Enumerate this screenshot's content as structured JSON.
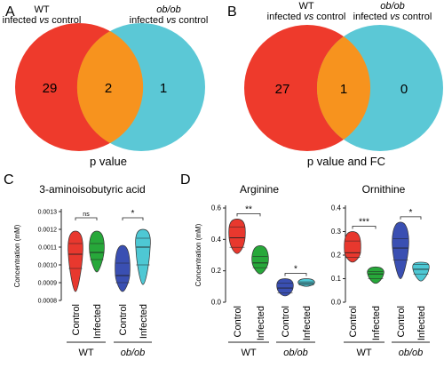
{
  "panels": {
    "A": {
      "letter": "A",
      "left_label": {
        "line1": "WT",
        "line2": "infected vs control",
        "line2_parts": [
          "infected ",
          "vs",
          " control"
        ]
      },
      "right_label": {
        "line1": "ob/ob",
        "line2": "infected vs control",
        "line2_parts": [
          "infected ",
          "vs",
          " control"
        ]
      },
      "counts": {
        "left_only": "29",
        "overlap": "2",
        "right_only": "1"
      },
      "caption": "p value"
    },
    "B": {
      "letter": "B",
      "left_label": {
        "line1": "WT",
        "line2": "infected vs control",
        "line2_parts": [
          "infected ",
          "vs",
          " control"
        ]
      },
      "right_label": {
        "line1": "ob/ob",
        "line2": "infected vs control",
        "line2_parts": [
          "infected ",
          "vs",
          " control"
        ]
      },
      "counts": {
        "left_only": "27",
        "overlap": "1",
        "right_only": "0"
      },
      "caption": "p value and FC"
    },
    "C": {
      "letter": "C"
    },
    "D": {
      "letter": "D"
    }
  },
  "colors": {
    "wt": "#ee3a2c",
    "ob": "#5bc8d6",
    "overlap": "#f7931e",
    "wt_control": "#e8382e",
    "wt_infected": "#27a83a",
    "ob_control": "#3a4fb2",
    "ob_infected": "#4ec8d4"
  },
  "chart_data": [
    {
      "type": "violin",
      "panel": "C",
      "title": "3-aminoisobutyric acid",
      "ylabel": "Concentration (mM)",
      "ylim": [
        0.0008,
        0.0013
      ],
      "yticks": [
        "0.0008",
        "0.0009",
        "0.0010",
        "0.0011",
        "0.0012",
        "0.0013"
      ],
      "categories": [
        "Control",
        "Infected",
        "Control",
        "Infected"
      ],
      "groups": [
        {
          "name": "WT",
          "italic": false
        },
        {
          "name": "ob/ob",
          "italic": true
        }
      ],
      "series": [
        {
          "name": "Control",
          "group": "WT",
          "min": 0.00085,
          "q1": 0.00098,
          "median": 0.00106,
          "q3": 0.00112,
          "max": 0.00119
        },
        {
          "name": "Infected",
          "group": "WT",
          "min": 0.00096,
          "q1": 0.00103,
          "median": 0.00107,
          "q3": 0.00112,
          "max": 0.00119
        },
        {
          "name": "Control",
          "group": "ob/ob",
          "min": 0.00085,
          "q1": 0.0009,
          "median": 0.00094,
          "q3": 0.00101,
          "max": 0.00111
        },
        {
          "name": "Infected",
          "group": "ob/ob",
          "min": 0.00089,
          "q1": 0.001,
          "median": 0.0011,
          "q3": 0.00115,
          "max": 0.0012
        }
      ],
      "significance": [
        {
          "pair": [
            0,
            1
          ],
          "label": "ns"
        },
        {
          "pair": [
            2,
            3
          ],
          "label": "*"
        }
      ]
    },
    {
      "type": "violin",
      "panel": "D",
      "title": "Arginine",
      "ylabel": "Concentration (mM)",
      "ylim": [
        0.0,
        0.6
      ],
      "yticks": [
        "0.0",
        "0.2",
        "0.4",
        "0.6"
      ],
      "categories": [
        "Control",
        "Infected",
        "Control",
        "Infected"
      ],
      "groups": [
        {
          "name": "WT",
          "italic": false
        },
        {
          "name": "ob/ob",
          "italic": true
        }
      ],
      "series": [
        {
          "name": "Control",
          "group": "WT",
          "min": 0.31,
          "q1": 0.35,
          "median": 0.41,
          "q3": 0.48,
          "max": 0.53
        },
        {
          "name": "Infected",
          "group": "WT",
          "min": 0.18,
          "q1": 0.22,
          "median": 0.25,
          "q3": 0.29,
          "max": 0.36
        },
        {
          "name": "Control",
          "group": "ob/ob",
          "min": 0.04,
          "q1": 0.06,
          "median": 0.09,
          "q3": 0.12,
          "max": 0.15
        },
        {
          "name": "Infected",
          "group": "ob/ob",
          "min": 0.1,
          "q1": 0.11,
          "median": 0.12,
          "q3": 0.13,
          "max": 0.15
        }
      ],
      "significance": [
        {
          "pair": [
            0,
            1
          ],
          "label": "**"
        },
        {
          "pair": [
            2,
            3
          ],
          "label": "*"
        }
      ]
    },
    {
      "type": "violin",
      "panel": "D",
      "title": "Ornithine",
      "ylabel": "",
      "ylim": [
        0.0,
        0.4
      ],
      "yticks": [
        "0.0",
        "0.1",
        "0.2",
        "0.3",
        "0.4"
      ],
      "categories": [
        "Control",
        "Infected",
        "Control",
        "Infected"
      ],
      "groups": [
        {
          "name": "WT",
          "italic": false
        },
        {
          "name": "ob/ob",
          "italic": true
        }
      ],
      "series": [
        {
          "name": "Control",
          "group": "WT",
          "min": 0.17,
          "q1": 0.19,
          "median": 0.21,
          "q3": 0.26,
          "max": 0.3
        },
        {
          "name": "Infected",
          "group": "WT",
          "min": 0.08,
          "q1": 0.1,
          "median": 0.12,
          "q3": 0.13,
          "max": 0.15
        },
        {
          "name": "Control",
          "group": "ob/ob",
          "min": 0.1,
          "q1": 0.18,
          "median": 0.23,
          "q3": 0.27,
          "max": 0.34
        },
        {
          "name": "Infected",
          "group": "ob/ob",
          "min": 0.09,
          "q1": 0.12,
          "median": 0.14,
          "q3": 0.16,
          "max": 0.17
        }
      ],
      "significance": [
        {
          "pair": [
            0,
            1
          ],
          "label": "***"
        },
        {
          "pair": [
            2,
            3
          ],
          "label": "*"
        }
      ]
    }
  ]
}
